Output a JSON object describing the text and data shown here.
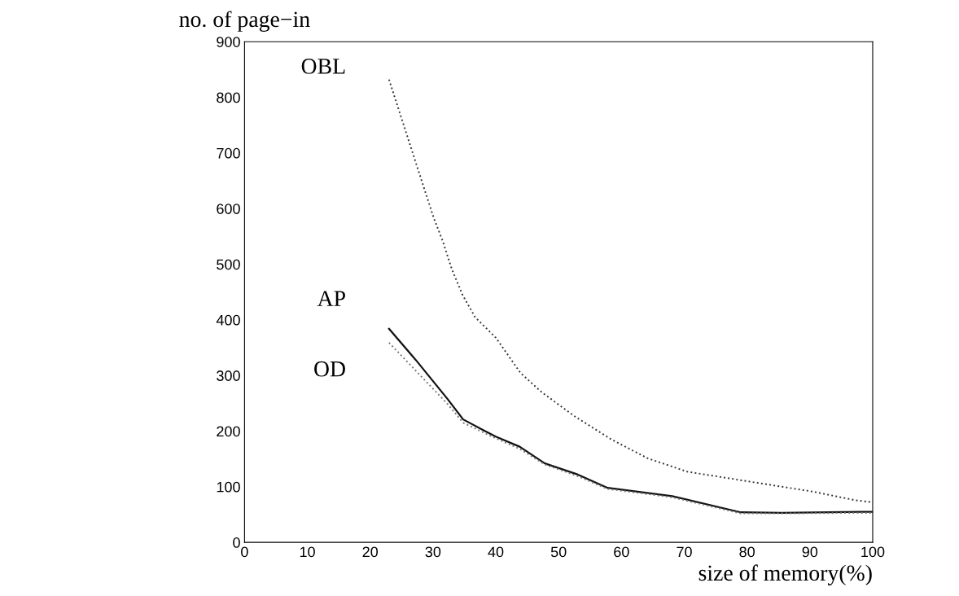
{
  "chart_data": {
    "type": "line",
    "xlabel": "size of memory(%)",
    "ylabel": "no. of page−in",
    "xlim": [
      0,
      100
    ],
    "ylim": [
      0,
      900
    ],
    "xticks": [
      0,
      10,
      20,
      30,
      40,
      50,
      60,
      70,
      80,
      90,
      100
    ],
    "yticks": [
      0,
      100,
      200,
      300,
      400,
      500,
      600,
      700,
      800,
      900
    ],
    "grid": false,
    "legend": false,
    "series": [
      {
        "name": "OBL",
        "color": "#333333",
        "line_style": "dotted",
        "x": [
          23,
          24.4,
          25.8,
          27.2,
          28.6,
          30.1,
          31.6,
          33,
          34.7,
          36.7,
          38.3,
          40,
          43.9,
          47.3,
          52.5,
          58.4,
          64.2,
          70.5,
          77.2,
          83.9,
          90.6,
          97.1,
          100
        ],
        "values": [
          832,
          783,
          734,
          685,
          636,
          584,
          540,
          491,
          445,
          405,
          387,
          368,
          305,
          270,
          227,
          185,
          151,
          127,
          115,
          103,
          91,
          76,
          72
        ]
      },
      {
        "name": "AP",
        "color": "#111111",
        "line_style": "solid",
        "x": [
          23,
          27.4,
          32.3,
          34.8,
          38.3,
          40,
          43.8,
          47.8,
          52.8,
          57.8,
          68.1,
          79,
          85.5,
          98.4,
          100
        ],
        "values": [
          384,
          326,
          258,
          221,
          200,
          190,
          172,
          142,
          123,
          98,
          83,
          54,
          53,
          55,
          55
        ]
      },
      {
        "name": "OD",
        "color": "#777777",
        "line_style": "dotted",
        "x": [
          23,
          32.3,
          34.8,
          38.3,
          40,
          43.8,
          47.8,
          52.8,
          57.8,
          68.1,
          79,
          85.5,
          98.4,
          100
        ],
        "values": [
          359,
          249,
          215,
          196,
          187,
          168,
          140,
          120,
          96,
          81,
          52,
          52,
          53,
          53
        ]
      }
    ]
  }
}
